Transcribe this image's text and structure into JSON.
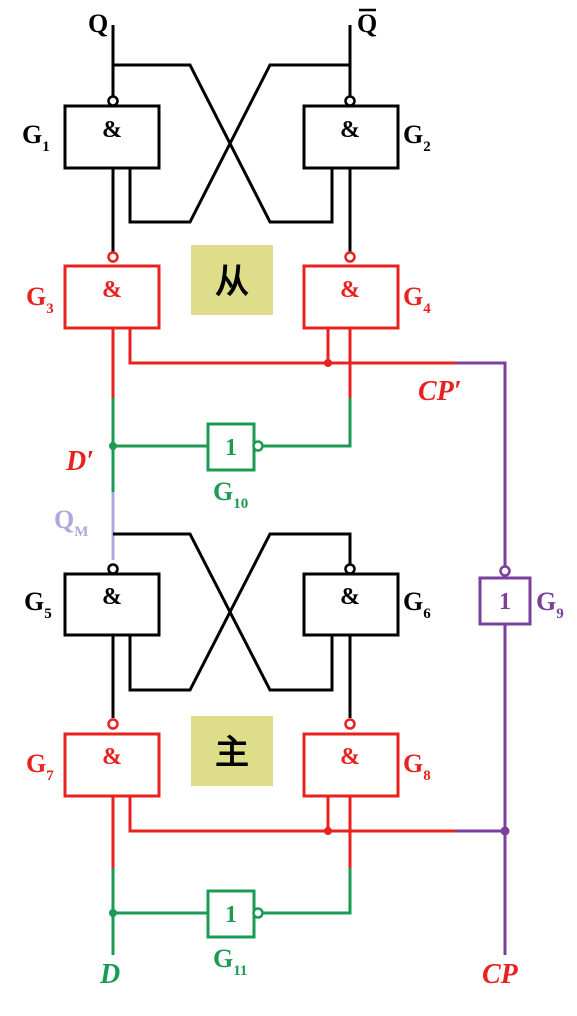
{
  "outputs": {
    "q": "Q",
    "qbar": "Q"
  },
  "gates": {
    "g1": {
      "symbol": "&",
      "letter": "G",
      "index": "1"
    },
    "g2": {
      "symbol": "&",
      "letter": "G",
      "index": "2"
    },
    "g3": {
      "symbol": "&",
      "letter": "G",
      "index": "3"
    },
    "g4": {
      "symbol": "&",
      "letter": "G",
      "index": "4"
    },
    "g5": {
      "symbol": "&",
      "letter": "G",
      "index": "5"
    },
    "g6": {
      "symbol": "&",
      "letter": "G",
      "index": "6"
    },
    "g7": {
      "symbol": "&",
      "letter": "G",
      "index": "7"
    },
    "g8": {
      "symbol": "&",
      "letter": "G",
      "index": "8"
    },
    "g9": {
      "symbol": "1",
      "letter": "G",
      "index": "9"
    },
    "g10": {
      "symbol": "1",
      "letter": "G",
      "index": "10"
    },
    "g11": {
      "symbol": "1",
      "letter": "G",
      "index": "11"
    }
  },
  "stages": {
    "slave": "从",
    "master": "主"
  },
  "signals": {
    "cp_prime": "CP′",
    "d_prime": "D′",
    "qm_letter": "Q",
    "qm_sub": "M",
    "d": "D",
    "cp": "CP"
  },
  "colors": {
    "black": "#000000",
    "red": "#e8231f",
    "green": "#1a9a52",
    "purple": "#7b3f9e",
    "lavender": "#b0a6e0",
    "stage_bg": "#dede8a"
  }
}
